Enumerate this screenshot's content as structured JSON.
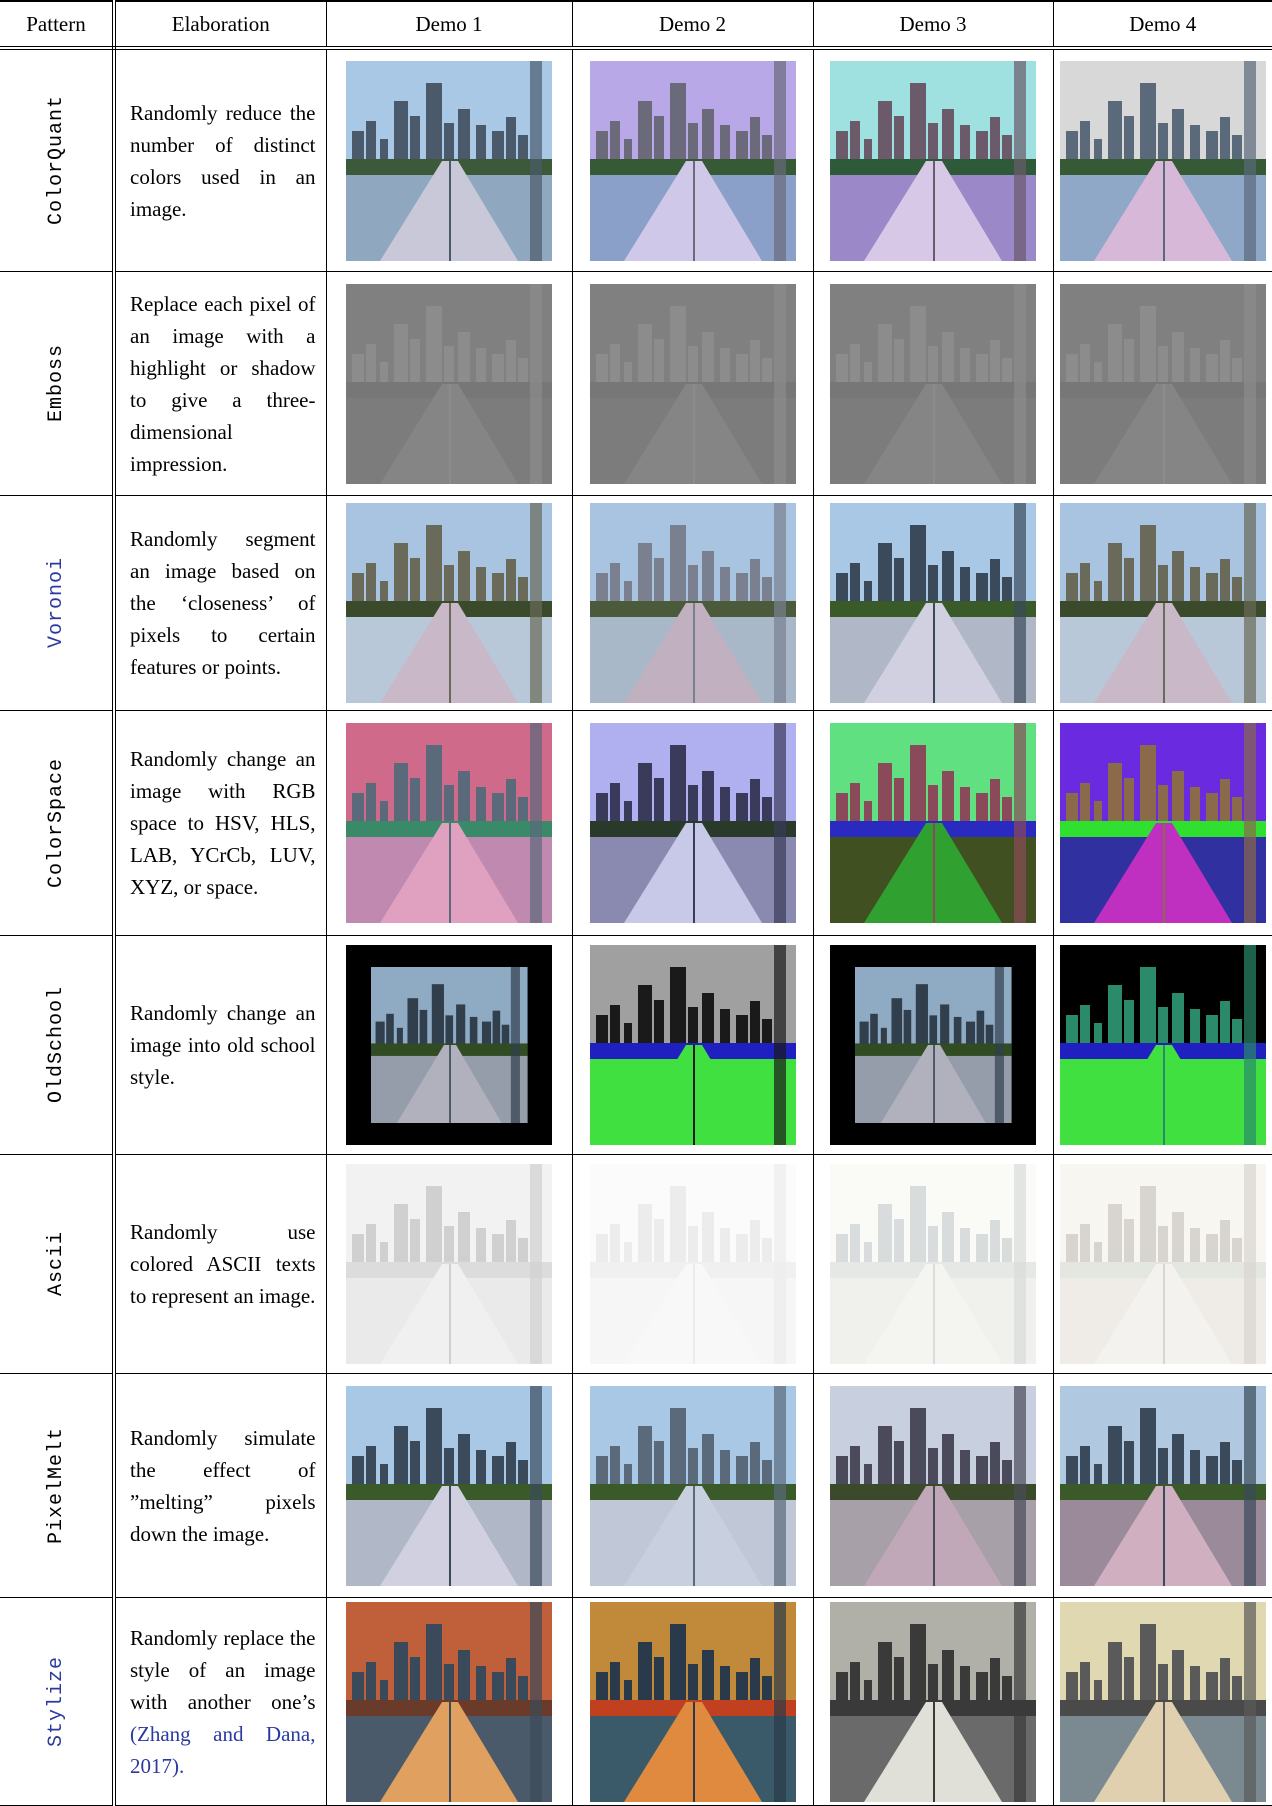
{
  "header": [
    "Pattern",
    "Elaboration",
    "Demo 1",
    "Demo 2",
    "Demo 3",
    "Demo 4"
  ],
  "rows": [
    {
      "pattern": "ColorQuant",
      "elaboration": "Randomly reduce the number of distinct colors used in an image."
    },
    {
      "pattern": "Emboss",
      "elaboration": "Replace each pixel of an image with a highlight or shadow to give a three-dimensional impression."
    },
    {
      "pattern": "Voronoi",
      "elaboration": "Randomly segment an image based on the ‘closeness’ of pixels to certain features or points."
    },
    {
      "pattern": "ColorSpace",
      "elaboration": "Randomly change an image with RGB space to HSV, HLS, LAB, YCrCb, LUV, XYZ, or space."
    },
    {
      "pattern": "OldSchool",
      "elaboration": "Randomly change an image into old school style."
    },
    {
      "pattern": "Ascii",
      "elaboration": "Randomly use colored ASCII texts to represent an image."
    },
    {
      "pattern": "PixelMelt",
      "elaboration": "Randomly simulate the effect of ”melting” pixels down the image."
    },
    {
      "pattern": "Stylize",
      "elaboration": "Randomly replace the style of an image with another one’s",
      "citation": "(Zhang and Dana, 2017)."
    }
  ]
}
